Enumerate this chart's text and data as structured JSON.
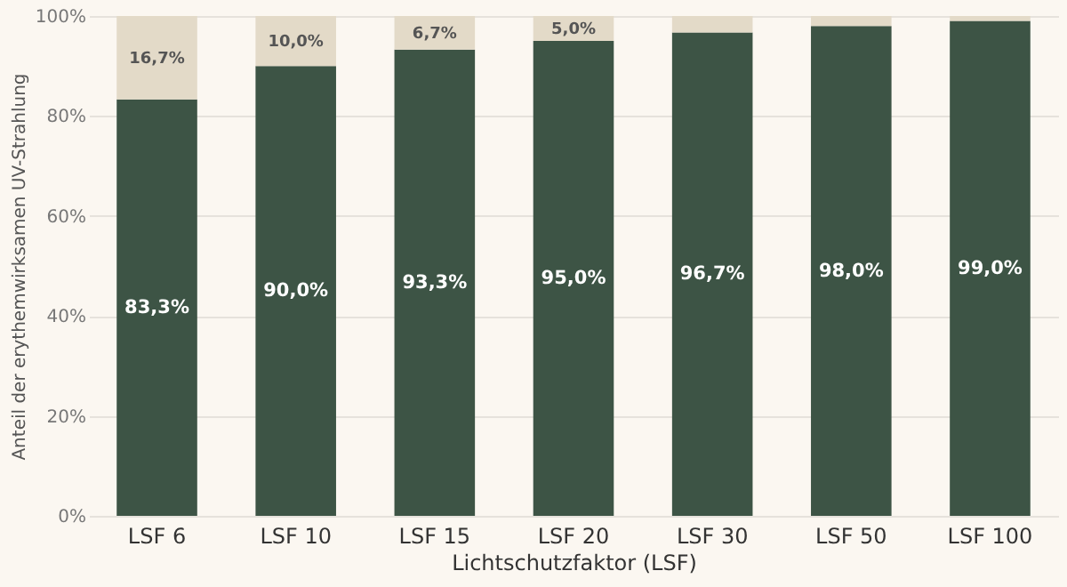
{
  "chart_data": {
    "type": "bar",
    "stacked": true,
    "xlabel": "Lichtschutzfaktor (LSF)",
    "ylabel": "Anteil der erythemwirksamen UV-Strahlung",
    "categories": [
      "LSF 6",
      "LSF 10",
      "LSF 15",
      "LSF 20",
      "LSF 30",
      "LSF 50",
      "LSF 100"
    ],
    "series": [
      {
        "color": "#3d5445",
        "values": [
          83.3,
          90.0,
          93.3,
          95.0,
          96.7,
          98.0,
          99.0
        ],
        "value_labels": [
          "83,3%",
          "90,0%",
          "93,3%",
          "95,0%",
          "96,7%",
          "98,0%",
          "99,0%"
        ]
      },
      {
        "color": "#e3dac8",
        "values": [
          16.7,
          10.0,
          6.7,
          5.0,
          3.3,
          2.0,
          1.0
        ],
        "value_labels": [
          "16,7%",
          "10,0%",
          "6,7%",
          "5,0%",
          null,
          null,
          null
        ]
      }
    ],
    "ylim": [
      0,
      100
    ],
    "yticks": [
      {
        "value": 0,
        "label": "0%"
      },
      {
        "value": 20,
        "label": "20%"
      },
      {
        "value": 40,
        "label": "40%"
      },
      {
        "value": 60,
        "label": "60%"
      },
      {
        "value": 80,
        "label": "80%"
      },
      {
        "value": 100,
        "label": "100%"
      }
    ],
    "grid": "y"
  }
}
